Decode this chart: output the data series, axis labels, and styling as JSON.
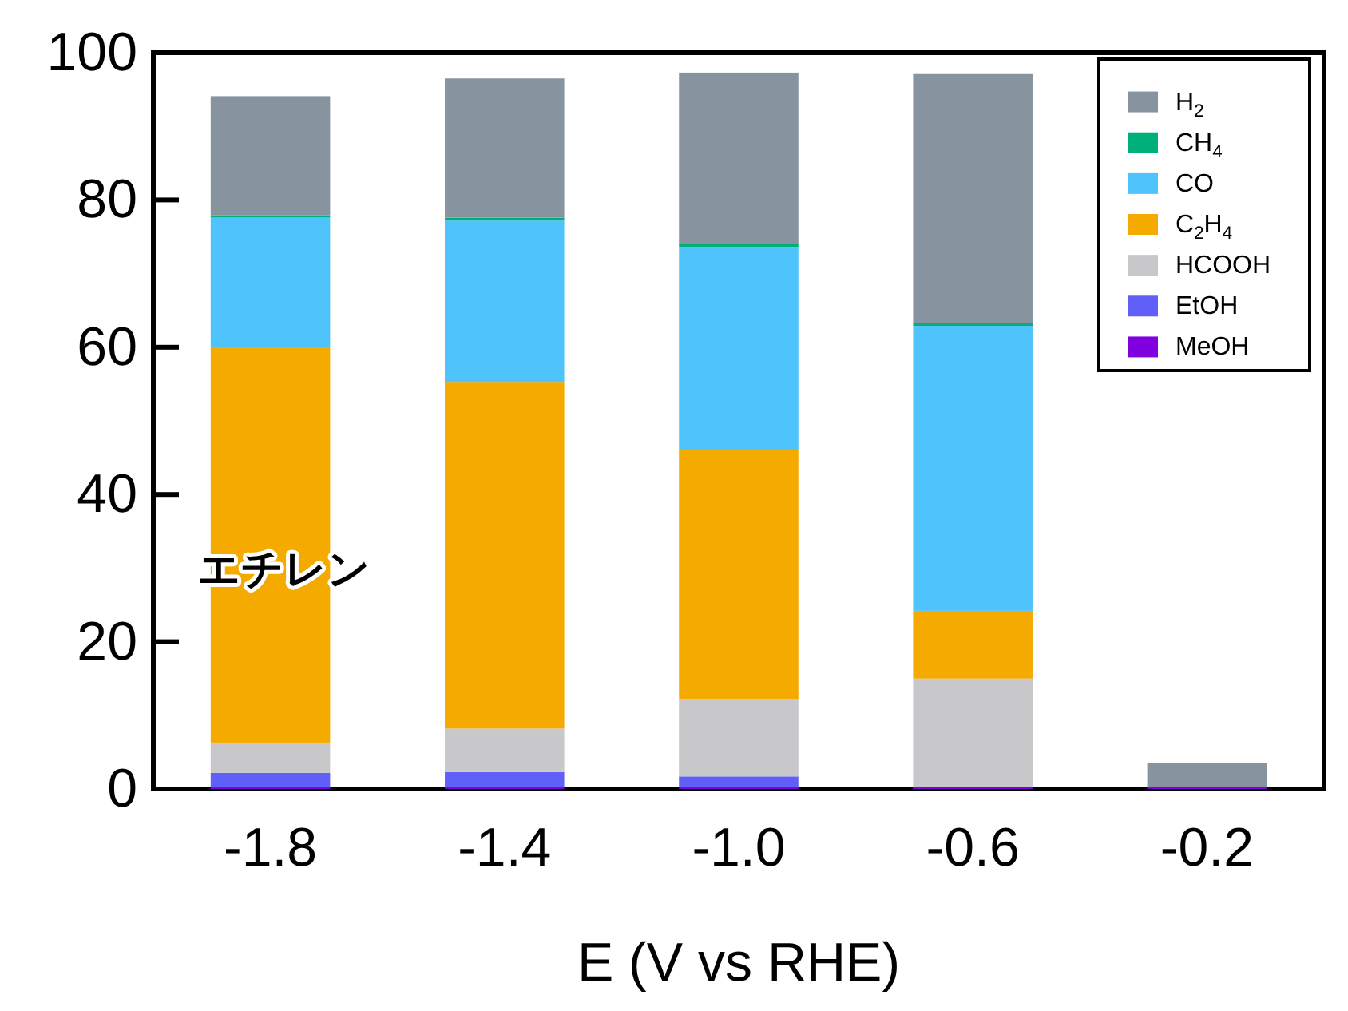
{
  "chart_data": {
    "type": "bar",
    "stacked": true,
    "xlabel": "E (V vs RHE)",
    "categories": [
      "-1.8",
      "-1.4",
      "-1.0",
      "-0.6",
      "-0.2"
    ],
    "ylim": [
      0,
      100
    ],
    "yticks": [
      0,
      20,
      40,
      60,
      80,
      100
    ],
    "legend": "top right",
    "series": [
      {
        "name": "MeOH",
        "color": "#8000e0",
        "values": [
          0.3,
          0.3,
          0.3,
          0.3,
          0.3
        ]
      },
      {
        "name": "EtOH",
        "color": "#6060f8",
        "values": [
          1.9,
          2.0,
          1.4,
          0,
          0
        ]
      },
      {
        "name": "HCOOH",
        "color": "#c8c8ca",
        "values": [
          4.1,
          5.9,
          10.5,
          14.7,
          0
        ]
      },
      {
        "name": "C$_{2}$H$_{4}$",
        "color": "#f5aa00",
        "values": [
          53.7,
          47.1,
          33.8,
          9.2,
          0
        ]
      },
      {
        "name": "CO",
        "color": "#4fc3fc",
        "values": [
          17.6,
          21.9,
          27.6,
          38.7,
          0
        ]
      },
      {
        "name": "CH$_{4}$",
        "color": "#00b07a",
        "values": [
          0.3,
          0.4,
          0.4,
          0.4,
          0
        ]
      },
      {
        "name": "H$_{2}$",
        "color": "#87939f",
        "values": [
          16.2,
          18.9,
          23.3,
          33.8,
          3.2
        ]
      }
    ],
    "annotations": [
      "エチレン"
    ]
  }
}
